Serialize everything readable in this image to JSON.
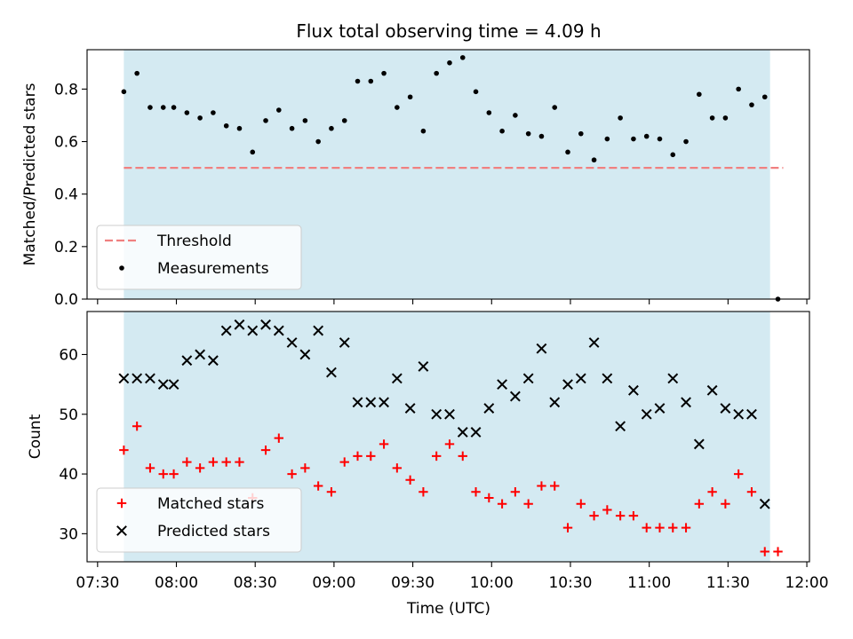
{
  "chart_data": {
    "title": "Flux total observing time = 4.09 h",
    "xlabel": "Time (UTC)",
    "x_ticks": [
      "07:30",
      "08:00",
      "08:30",
      "09:00",
      "09:30",
      "10:00",
      "10:30",
      "11:00",
      "11:30",
      "12:00"
    ],
    "x_range": [
      "07:26",
      "12:01"
    ],
    "observing_window": [
      "07:40",
      "11:46"
    ],
    "colors": {
      "window": "#add8e6",
      "threshold": "#f08080",
      "measurements": "#000000",
      "matched": "#ff0000",
      "predicted": "#000000"
    },
    "panels": [
      {
        "type": "scatter",
        "ylabel": "Matched/Predicted stars",
        "ylim": [
          0,
          0.95
        ],
        "y_ticks": [
          0.0,
          0.2,
          0.4,
          0.6,
          0.8
        ],
        "legend_position": "lower-left",
        "threshold": {
          "name": "Threshold",
          "value": 0.5,
          "x_range": [
            "07:40",
            "11:51"
          ]
        },
        "series": [
          {
            "name": "Measurements",
            "marker": "dot",
            "points": [
              [
                "07:40",
                0.79
              ],
              [
                "07:45",
                0.86
              ],
              [
                "07:50",
                0.73
              ],
              [
                "07:55",
                0.73
              ],
              [
                "07:59",
                0.73
              ],
              [
                "08:04",
                0.71
              ],
              [
                "08:09",
                0.69
              ],
              [
                "08:14",
                0.71
              ],
              [
                "08:19",
                0.66
              ],
              [
                "08:24",
                0.65
              ],
              [
                "08:29",
                0.56
              ],
              [
                "08:34",
                0.68
              ],
              [
                "08:39",
                0.72
              ],
              [
                "08:44",
                0.65
              ],
              [
                "08:49",
                0.68
              ],
              [
                "08:54",
                0.6
              ],
              [
                "08:59",
                0.65
              ],
              [
                "09:04",
                0.68
              ],
              [
                "09:09",
                0.83
              ],
              [
                "09:14",
                0.83
              ],
              [
                "09:19",
                0.86
              ],
              [
                "09:24",
                0.73
              ],
              [
                "09:29",
                0.77
              ],
              [
                "09:34",
                0.64
              ],
              [
                "09:39",
                0.86
              ],
              [
                "09:44",
                0.9
              ],
              [
                "09:49",
                0.92
              ],
              [
                "09:54",
                0.79
              ],
              [
                "09:59",
                0.71
              ],
              [
                "10:04",
                0.64
              ],
              [
                "10:09",
                0.7
              ],
              [
                "10:14",
                0.63
              ],
              [
                "10:19",
                0.62
              ],
              [
                "10:24",
                0.73
              ],
              [
                "10:29",
                0.56
              ],
              [
                "10:34",
                0.63
              ],
              [
                "10:39",
                0.53
              ],
              [
                "10:44",
                0.61
              ],
              [
                "10:49",
                0.69
              ],
              [
                "10:54",
                0.61
              ],
              [
                "10:59",
                0.62
              ],
              [
                "11:04",
                0.61
              ],
              [
                "11:09",
                0.55
              ],
              [
                "11:14",
                0.6
              ],
              [
                "11:19",
                0.78
              ],
              [
                "11:24",
                0.69
              ],
              [
                "11:29",
                0.69
              ],
              [
                "11:34",
                0.8
              ],
              [
                "11:39",
                0.74
              ],
              [
                "11:44",
                0.77
              ],
              [
                "11:49",
                0.0
              ]
            ]
          }
        ]
      },
      {
        "type": "scatter",
        "ylabel": "Count",
        "ylim": [
          25.3,
          67.2
        ],
        "y_ticks": [
          30,
          40,
          50,
          60
        ],
        "legend_position": "lower-left",
        "series": [
          {
            "name": "Matched stars",
            "marker": "plus",
            "points": [
              [
                "07:40",
                44
              ],
              [
                "07:45",
                48
              ],
              [
                "07:50",
                41
              ],
              [
                "07:55",
                40
              ],
              [
                "07:59",
                40
              ],
              [
                "08:04",
                42
              ],
              [
                "08:09",
                41
              ],
              [
                "08:14",
                42
              ],
              [
                "08:19",
                42
              ],
              [
                "08:24",
                42
              ],
              [
                "08:29",
                36
              ],
              [
                "08:34",
                44
              ],
              [
                "08:39",
                46
              ],
              [
                "08:44",
                40
              ],
              [
                "08:49",
                41
              ],
              [
                "08:54",
                38
              ],
              [
                "08:59",
                37
              ],
              [
                "09:04",
                42
              ],
              [
                "09:09",
                43
              ],
              [
                "09:14",
                43
              ],
              [
                "09:19",
                45
              ],
              [
                "09:24",
                41
              ],
              [
                "09:29",
                39
              ],
              [
                "09:34",
                37
              ],
              [
                "09:39",
                43
              ],
              [
                "09:44",
                45
              ],
              [
                "09:49",
                43
              ],
              [
                "09:54",
                37
              ],
              [
                "09:59",
                36
              ],
              [
                "10:04",
                35
              ],
              [
                "10:09",
                37
              ],
              [
                "10:14",
                35
              ],
              [
                "10:19",
                38
              ],
              [
                "10:24",
                38
              ],
              [
                "10:29",
                31
              ],
              [
                "10:34",
                35
              ],
              [
                "10:39",
                33
              ],
              [
                "10:44",
                34
              ],
              [
                "10:49",
                33
              ],
              [
                "10:54",
                33
              ],
              [
                "10:59",
                31
              ],
              [
                "11:04",
                31
              ],
              [
                "11:09",
                31
              ],
              [
                "11:14",
                31
              ],
              [
                "11:19",
                35
              ],
              [
                "11:24",
                37
              ],
              [
                "11:29",
                35
              ],
              [
                "11:34",
                40
              ],
              [
                "11:39",
                37
              ],
              [
                "11:44",
                27
              ],
              [
                "11:49",
                27
              ]
            ]
          },
          {
            "name": "Predicted stars",
            "marker": "x",
            "points": [
              [
                "07:40",
                56
              ],
              [
                "07:45",
                56
              ],
              [
                "07:50",
                56
              ],
              [
                "07:55",
                55
              ],
              [
                "07:59",
                55
              ],
              [
                "08:04",
                59
              ],
              [
                "08:09",
                60
              ],
              [
                "08:14",
                59
              ],
              [
                "08:19",
                64
              ],
              [
                "08:24",
                65
              ],
              [
                "08:29",
                64
              ],
              [
                "08:34",
                65
              ],
              [
                "08:39",
                64
              ],
              [
                "08:44",
                62
              ],
              [
                "08:49",
                60
              ],
              [
                "08:54",
                64
              ],
              [
                "08:59",
                57
              ],
              [
                "09:04",
                62
              ],
              [
                "09:09",
                52
              ],
              [
                "09:14",
                52
              ],
              [
                "09:19",
                52
              ],
              [
                "09:24",
                56
              ],
              [
                "09:29",
                51
              ],
              [
                "09:34",
                58
              ],
              [
                "09:39",
                50
              ],
              [
                "09:44",
                50
              ],
              [
                "09:49",
                47
              ],
              [
                "09:54",
                47
              ],
              [
                "09:59",
                51
              ],
              [
                "10:04",
                55
              ],
              [
                "10:09",
                53
              ],
              [
                "10:14",
                56
              ],
              [
                "10:19",
                61
              ],
              [
                "10:24",
                52
              ],
              [
                "10:29",
                55
              ],
              [
                "10:34",
                56
              ],
              [
                "10:39",
                62
              ],
              [
                "10:44",
                56
              ],
              [
                "10:49",
                48
              ],
              [
                "10:54",
                54
              ],
              [
                "10:59",
                50
              ],
              [
                "11:04",
                51
              ],
              [
                "11:09",
                56
              ],
              [
                "11:14",
                52
              ],
              [
                "11:19",
                45
              ],
              [
                "11:24",
                54
              ],
              [
                "11:29",
                51
              ],
              [
                "11:34",
                50
              ],
              [
                "11:39",
                50
              ],
              [
                "11:44",
                35
              ]
            ]
          }
        ]
      }
    ]
  }
}
